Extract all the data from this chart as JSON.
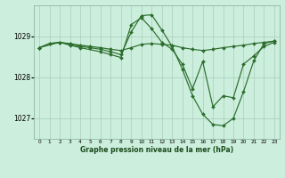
{
  "title": "Graphe pression niveau de la mer (hPa)",
  "bg_color": "#cceedd",
  "grid_color": "#aaccbb",
  "line_color": "#2d6e2d",
  "xlim": [
    -0.5,
    23.5
  ],
  "ylim": [
    1026.5,
    1029.75
  ],
  "yticks": [
    1027,
    1028,
    1029
  ],
  "xtick_labels": [
    "0",
    "1",
    "2",
    "3",
    "4",
    "5",
    "6",
    "7",
    "8",
    "9",
    "10",
    "11",
    "12",
    "13",
    "14",
    "15",
    "16",
    "17",
    "18",
    "19",
    "20",
    "21",
    "22",
    "23"
  ],
  "series": [
    {
      "x": [
        0,
        1,
        2,
        3,
        4,
        5,
        6,
        7,
        8,
        9,
        10,
        11,
        12,
        13,
        14,
        15,
        16,
        17,
        18,
        19,
        20,
        21,
        22,
        23
      ],
      "y": [
        1028.72,
        1028.82,
        1028.85,
        1028.82,
        1028.78,
        1028.75,
        1028.72,
        1028.68,
        1028.65,
        1028.72,
        1028.8,
        1028.82,
        1028.8,
        1028.78,
        1028.72,
        1028.68,
        1028.65,
        1028.68,
        1028.72,
        1028.75,
        1028.78,
        1028.82,
        1028.85,
        1028.88
      ]
    },
    {
      "x": [
        0,
        1,
        2,
        3,
        4,
        5,
        6,
        7,
        8,
        9,
        10,
        11,
        12,
        13,
        14,
        15,
        16,
        17,
        18,
        19,
        20,
        21,
        22,
        23
      ],
      "y": [
        1028.72,
        1028.82,
        1028.85,
        1028.8,
        1028.75,
        1028.72,
        1028.68,
        1028.62,
        1028.55,
        1029.1,
        1029.5,
        1029.52,
        1029.15,
        1028.75,
        1028.2,
        1027.55,
        1027.1,
        1026.85,
        1026.82,
        1027.0,
        1027.65,
        1028.4,
        1028.82,
        1028.88
      ]
    },
    {
      "x": [
        0,
        2,
        3,
        4,
        6,
        7,
        8,
        9,
        10,
        11,
        12,
        13,
        14,
        15,
        16,
        17,
        18,
        19,
        20,
        21,
        22,
        23
      ],
      "y": [
        1028.72,
        1028.85,
        1028.78,
        1028.72,
        1028.62,
        1028.55,
        1028.48,
        1029.28,
        1029.45,
        1029.18,
        1028.85,
        1028.68,
        1028.32,
        1027.72,
        1028.38,
        1027.28,
        1027.55,
        1027.5,
        1028.32,
        1028.52,
        1028.75,
        1028.85
      ]
    }
  ]
}
